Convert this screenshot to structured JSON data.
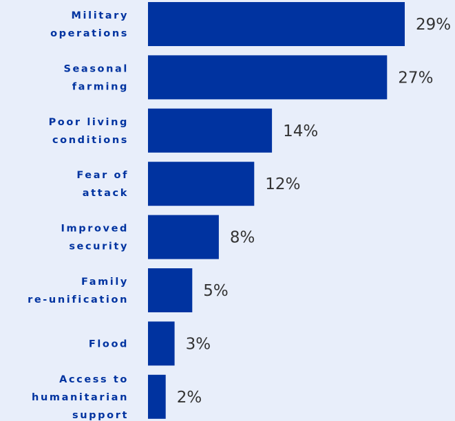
{
  "colors": {
    "background": "#e8eefa",
    "bar": "#0033a0",
    "category_label": "#0033a0",
    "value_label": "#333333"
  },
  "chart_data": {
    "type": "bar",
    "orientation": "horizontal",
    "categories": [
      [
        "Military",
        "operations"
      ],
      [
        "Seasonal",
        "farming"
      ],
      [
        "Poor living",
        "conditions"
      ],
      [
        "Fear of",
        "attack"
      ],
      [
        "Improved",
        "security"
      ],
      [
        "Family",
        "re-unification"
      ],
      [
        "Flood"
      ],
      [
        "Access to",
        "humanitarian",
        "support"
      ]
    ],
    "values": [
      29,
      27,
      14,
      12,
      8,
      5,
      3,
      2
    ],
    "value_labels": [
      "29%",
      "27%",
      "14%",
      "12%",
      "8%",
      "5%",
      "3%",
      "2%"
    ],
    "unit": "%",
    "xlim": [
      0,
      29
    ],
    "grid": false,
    "legend": "none"
  }
}
